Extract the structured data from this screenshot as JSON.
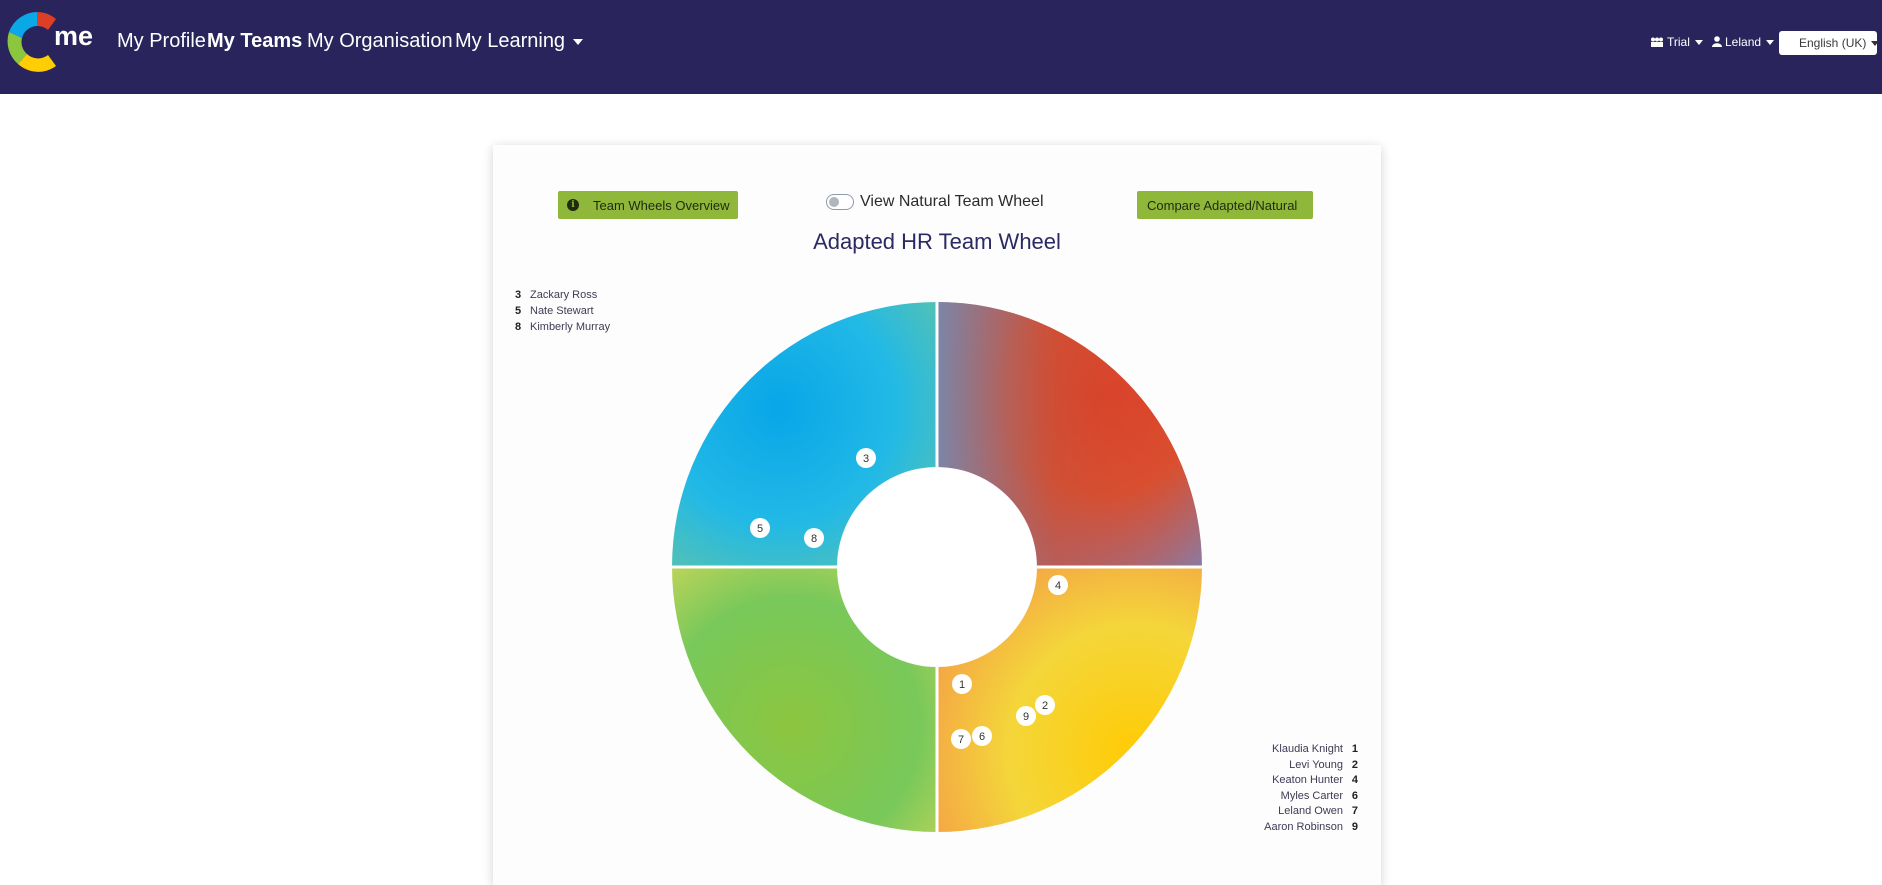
{
  "brand": {
    "logo_text": "me"
  },
  "nav": {
    "profile": "My Profile",
    "teams": "My Teams",
    "organisation": "My Organisation",
    "learning": "My Learning",
    "trial": "Trial",
    "user": "Leland",
    "language": "English (UK)"
  },
  "card": {
    "overview_button": "Team Wheels Overview",
    "toggle_label": "View Natural Team Wheel",
    "toggle_on": false,
    "compare_button": "Compare Adapted/Natural",
    "title": "Adapted HR Team Wheel"
  },
  "colors": {
    "navbar": "#29255c",
    "button_green": "#8fb83a",
    "red": "#dc3e26",
    "blue": "#0aa8e6",
    "green": "#8cc63f",
    "yellow": "#ffcd03"
  },
  "legend_left": [
    {
      "num": "3",
      "name": "Zackary Ross"
    },
    {
      "num": "5",
      "name": "Nate Stewart"
    },
    {
      "num": "8",
      "name": "Kimberly Murray"
    }
  ],
  "legend_right": [
    {
      "num": "1",
      "name": "Klaudia Knight"
    },
    {
      "num": "2",
      "name": "Levi Young"
    },
    {
      "num": "4",
      "name": "Keaton Hunter"
    },
    {
      "num": "6",
      "name": "Myles Carter"
    },
    {
      "num": "7",
      "name": "Leland Owen"
    },
    {
      "num": "9",
      "name": "Aaron Robinson"
    }
  ],
  "wheel_markers": [
    "1",
    "2",
    "3",
    "4",
    "5",
    "6",
    "7",
    "8",
    "9"
  ]
}
